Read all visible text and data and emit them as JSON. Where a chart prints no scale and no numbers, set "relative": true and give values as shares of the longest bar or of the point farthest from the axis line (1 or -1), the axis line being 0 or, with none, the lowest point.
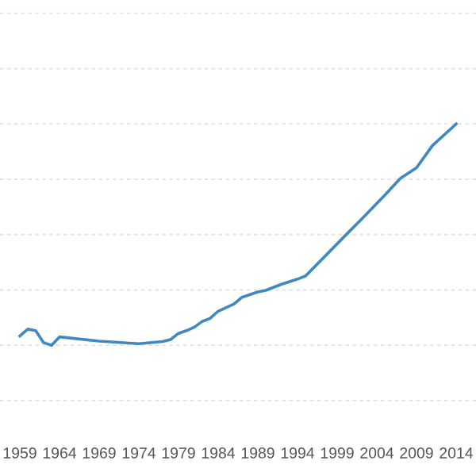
{
  "chart_data": {
    "type": "line",
    "relative": true,
    "grid": "y",
    "x": [
      1959,
      1960,
      1961,
      1962,
      1963,
      1964,
      1969,
      1974,
      1977,
      1978,
      1979,
      1980,
      1981,
      1982,
      1983,
      1984,
      1986,
      1987,
      1989,
      1990,
      1992,
      1994,
      1995,
      2000,
      2002,
      2005,
      2007,
      2009,
      2011,
      2014
    ],
    "series": [
      {
        "color": "#3f88c0",
        "values": [
          0.042,
          0.073,
          0.066,
          0.012,
          0,
          0.038,
          0.019,
          0.007,
          0.017,
          0.026,
          0.054,
          0.066,
          0.082,
          0.108,
          0.122,
          0.154,
          0.187,
          0.217,
          0.241,
          0.248,
          0.276,
          0.299,
          0.313,
          0.495,
          0.567,
          0.678,
          0.755,
          0.802,
          0.902,
          1.0
        ]
      }
    ],
    "xlim": [
      1956.5,
      2016.5
    ],
    "xticks": [
      1959,
      1964,
      1969,
      1974,
      1979,
      1984,
      1989,
      1994,
      1999,
      2004,
      2009,
      2014
    ]
  }
}
